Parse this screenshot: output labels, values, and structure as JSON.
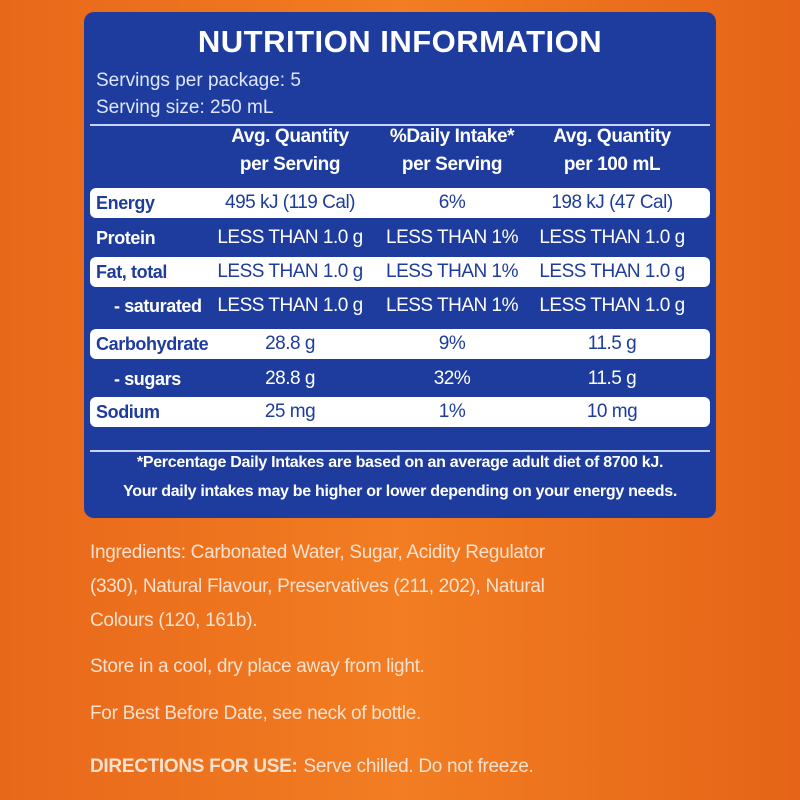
{
  "header": {
    "title": "NUTRITION INFORMATION",
    "servings": "Servings per package: 5",
    "serving_size": "Serving size: 250 mL"
  },
  "table": {
    "columns": [
      [
        "Avg. Quantity",
        "per Serving"
      ],
      [
        "%Daily Intake*",
        "per Serving"
      ],
      [
        "Avg. Quantity",
        "per 100 mL"
      ]
    ],
    "rows": [
      [
        "Energy",
        "495 kJ (119 Cal)",
        "6%",
        "198 kJ (47 Cal)"
      ],
      [
        "Protein",
        "LESS THAN 1.0 g",
        "LESS THAN 1%",
        "LESS THAN 1.0 g"
      ],
      [
        "Fat, total",
        "LESS THAN 1.0 g",
        "LESS THAN 1%",
        "LESS THAN 1.0 g"
      ],
      [
        "- saturated",
        "LESS THAN 1.0 g",
        "LESS THAN 1%",
        "LESS THAN 1.0 g"
      ],
      [
        "Carbohydrate",
        "28.8 g",
        "9%",
        "11.5 g"
      ],
      [
        "- sugars",
        "28.8 g",
        "32%",
        "11.5 g"
      ],
      [
        "Sodium",
        "25 mg",
        "1%",
        "10 mg"
      ]
    ]
  },
  "footnote": [
    "*Percentage Daily Intakes are based on an average adult diet of 8700 kJ.",
    "Your daily intakes may be higher or lower depending on your energy needs."
  ],
  "ingredients": [
    "Ingredients: Carbonated Water, Sugar, Acidity Regulator",
    "(330), Natural Flavour, Preservatives (211, 202), Natural",
    "Colours (120, 161b)."
  ],
  "storage": "Store in a cool, dry place away from light.",
  "best_before": "For Best Before Date, see neck of bottle.",
  "directions": {
    "label": "DIRECTIONS FOR USE:",
    "text": "Serve chilled. Do not freeze."
  }
}
